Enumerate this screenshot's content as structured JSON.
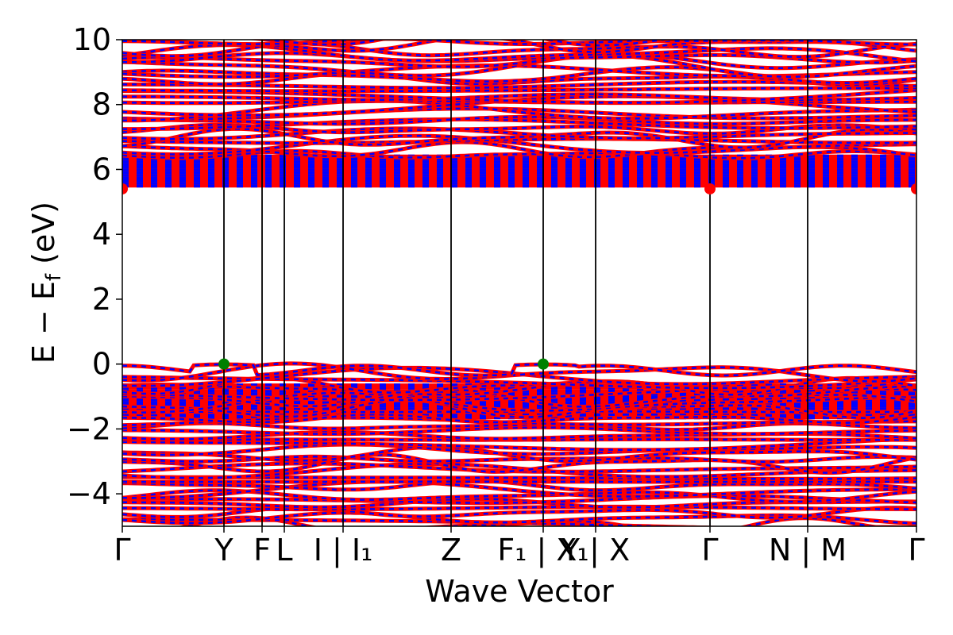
{
  "chart_data": {
    "type": "line",
    "title": "",
    "xlabel": "Wave Vector",
    "ylabel": "E − E",
    "ylabel_sub": "f",
    "ylabel_unit": " (eV)",
    "ylim": [
      -5,
      10
    ],
    "yticks": [
      -4,
      -2,
      0,
      2,
      4,
      6,
      8,
      10
    ],
    "ytick_labels": [
      "−4",
      "−2",
      "0",
      "2",
      "4",
      "6",
      "8",
      "10"
    ],
    "k_path": [
      {
        "label": "Γ",
        "k": 0.0
      },
      {
        "label": "Y",
        "k": 0.128
      },
      {
        "label": "F",
        "k": 0.176
      },
      {
        "label": "L",
        "k": 0.204
      },
      {
        "label": "I | I₁",
        "k": 0.278
      },
      {
        "label": "Z",
        "k": 0.414
      },
      {
        "label": "F₁ | X₁",
        "k": 0.53
      },
      {
        "label": "Y | X",
        "k": 0.596
      },
      {
        "label": "Γ",
        "k": 0.74
      },
      {
        "label": "N | M",
        "k": 0.863
      },
      {
        "label": "Γ",
        "k": 1.0
      }
    ],
    "grid": false,
    "legend": "none",
    "band_gap_eV": 5.4,
    "valence_band_maximum": {
      "E": 0.0,
      "k_points": [
        "Y",
        "F₁ | X₁"
      ]
    },
    "conduction_band_minimum": {
      "E": 5.4,
      "k_points": [
        "Γ"
      ]
    },
    "valence_band_window": [
      -5,
      0
    ],
    "conduction_band_window": [
      5.4,
      10
    ],
    "colors": {
      "spin_up": "#ff0000",
      "spin_down": "#0000ff",
      "vbm_marker": "#008000",
      "cbm_marker": "#ff0000",
      "kpath_line": "#000000"
    }
  }
}
